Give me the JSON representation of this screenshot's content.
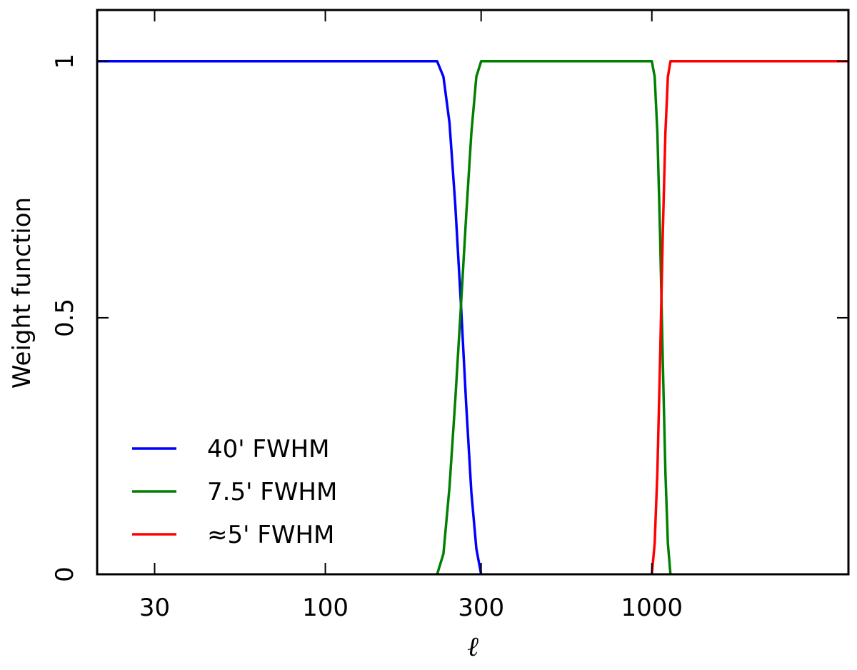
{
  "chart_data": {
    "type": "line",
    "title": "",
    "xlabel": "ℓ",
    "ylabel": "Weight function",
    "xscale": "log",
    "xlim": [
      20,
      4000
    ],
    "ylim": [
      0,
      1.1
    ],
    "xticks": [
      30,
      100,
      300,
      1000
    ],
    "xtick_labels": [
      "30",
      "100",
      "300",
      "1000"
    ],
    "yticks": [
      0,
      0.5,
      1
    ],
    "ytick_labels": [
      "0",
      "0.5",
      "1"
    ],
    "legend_position": "lower-left",
    "series": [
      {
        "name": "40' FWHM",
        "color": "#0000ff",
        "x": [
          20,
          150,
          220,
          230,
          240,
          250,
          260,
          270,
          280,
          290,
          300
        ],
        "y": [
          1.0,
          1.0,
          1.0,
          0.97,
          0.88,
          0.72,
          0.53,
          0.33,
          0.16,
          0.05,
          0.0
        ]
      },
      {
        "name": "7.5' FWHM",
        "color": "#008000",
        "x": [
          220,
          230,
          240,
          250,
          260,
          270,
          280,
          290,
          300,
          1000,
          1020,
          1040,
          1060,
          1080,
          1100,
          1120,
          1140
        ],
        "y": [
          0.0,
          0.04,
          0.17,
          0.34,
          0.52,
          0.7,
          0.86,
          0.97,
          1.0,
          1.0,
          0.97,
          0.86,
          0.66,
          0.42,
          0.2,
          0.06,
          0.0
        ]
      },
      {
        "name": "≈5' FWHM",
        "color": "#ff0000",
        "x": [
          1000,
          1020,
          1040,
          1060,
          1080,
          1100,
          1120,
          1140,
          1300,
          4000
        ],
        "y": [
          0.0,
          0.06,
          0.2,
          0.42,
          0.66,
          0.86,
          0.97,
          1.0,
          1.0,
          1.0
        ]
      }
    ]
  }
}
